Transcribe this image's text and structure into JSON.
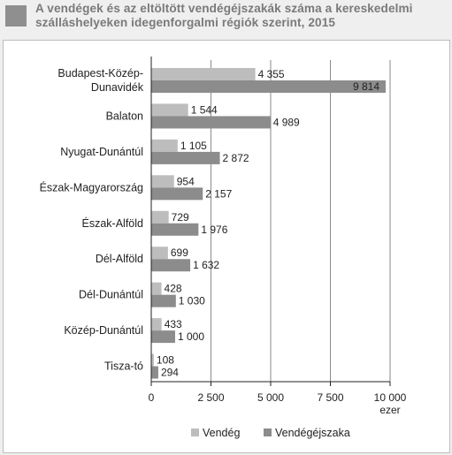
{
  "title": "A vendégek és az eltöltött vendégéjszakák száma a kereskedelmi szálláshelyeken idegenforgalmi régiók szerint, 2015",
  "colors": {
    "guests": "#bdbdbd",
    "nights": "#8c8c8c",
    "title_box": "#8f8f8f"
  },
  "chart_data": {
    "type": "bar",
    "orientation": "horizontal",
    "title": "A vendégek és az eltöltött vendégéjszakák száma a kereskedelmi szálláshelyeken idegenforgalmi régiók szerint, 2015",
    "unit": "ezer",
    "categories": [
      [
        "Budapest-Közép-",
        "Dunavidék"
      ],
      [
        "Balaton"
      ],
      [
        "Nyugat-Dunántúl"
      ],
      [
        "Észak-Magyarország"
      ],
      [
        "Észak-Alföld"
      ],
      [
        "Dél-Alföld"
      ],
      [
        "Dél-Dunántúl"
      ],
      [
        "Közép-Dunántúl"
      ],
      [
        "Tisza-tó"
      ]
    ],
    "series": [
      {
        "name": "Vendég",
        "values": [
          4355,
          1544,
          1105,
          954,
          729,
          699,
          428,
          433,
          108
        ],
        "labels": [
          "4 355",
          "1 544",
          "1 105",
          "954",
          "729",
          "699",
          "428",
          "433",
          "108"
        ]
      },
      {
        "name": "Vendégéjszaka",
        "values": [
          9814,
          4989,
          2872,
          2157,
          1976,
          1632,
          1030,
          1000,
          294
        ],
        "labels": [
          "9 814",
          "4 989",
          "2 872",
          "2 157",
          "1 976",
          "1 632",
          "1 030",
          "1 000",
          "294"
        ]
      }
    ],
    "xlim": [
      0,
      10000
    ],
    "xticks": [
      0,
      2500,
      5000,
      7500,
      10000
    ],
    "xtick_labels": [
      "0",
      "2 500",
      "5 000",
      "7 500",
      "10 000"
    ],
    "grid": true,
    "legend_position": "bottom"
  }
}
